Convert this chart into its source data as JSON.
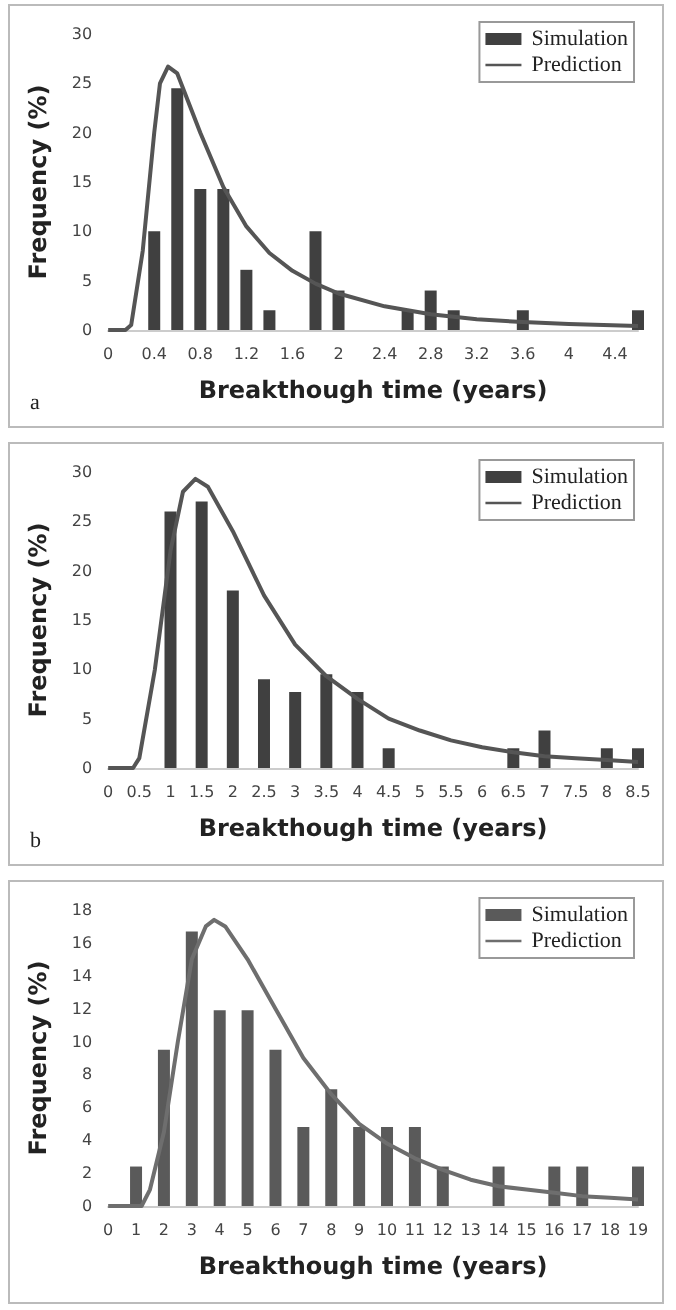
{
  "chart_data": [
    {
      "type": "bar",
      "xlabel": "Breakthough time (years)",
      "ylabel": "Frequency (%)",
      "annotations": [
        "a"
      ],
      "legend": "top right",
      "grid": false,
      "xlim": [
        0,
        4.6
      ],
      "xticks": [
        0,
        0.4,
        0.8,
        1.2,
        1.6,
        2,
        2.4,
        2.8,
        3.2,
        3.6,
        4,
        4.4
      ],
      "ylim": [
        0,
        30
      ],
      "yticks": [
        0,
        5,
        10,
        15,
        20,
        25,
        30
      ],
      "series": [
        {
          "name": "Simulation",
          "color": "#404040",
          "x": [
            0.4,
            0.6,
            0.8,
            1.0,
            1.2,
            1.4,
            1.8,
            2.0,
            2.6,
            2.8,
            3.0,
            3.6,
            4.6
          ],
          "values": [
            10,
            24.5,
            14.3,
            14.3,
            6.1,
            2,
            10,
            4,
            2,
            4,
            2,
            2,
            2
          ]
        },
        {
          "name": "Prediction",
          "type": "line",
          "color": "#555555",
          "x": [
            0,
            0.15,
            0.2,
            0.3,
            0.4,
            0.45,
            0.52,
            0.6,
            0.8,
            1.0,
            1.2,
            1.4,
            1.6,
            1.8,
            2.0,
            2.4,
            2.8,
            3.2,
            3.6,
            4.0,
            4.6
          ],
          "values": [
            0,
            0,
            0.5,
            8,
            20,
            25,
            26.7,
            26,
            20,
            14.5,
            10.5,
            7.8,
            6,
            4.7,
            3.7,
            2.4,
            1.6,
            1.1,
            0.8,
            0.6,
            0.4
          ]
        }
      ]
    },
    {
      "type": "bar",
      "xlabel": "Breakthough time (years)",
      "ylabel": "Frequency (%)",
      "annotations": [
        "b"
      ],
      "legend": "top right",
      "grid": false,
      "xlim": [
        0,
        8.5
      ],
      "xticks": [
        0,
        0.5,
        1,
        1.5,
        2,
        2.5,
        3,
        3.5,
        4,
        4.5,
        5,
        5.5,
        6,
        6.5,
        7,
        7.5,
        8,
        8.5
      ],
      "ylim": [
        0,
        30
      ],
      "yticks": [
        0,
        5,
        10,
        15,
        20,
        25,
        30
      ],
      "series": [
        {
          "name": "Simulation",
          "color": "#404040",
          "x": [
            1,
            1.5,
            2,
            2.5,
            3,
            3.5,
            4,
            4.5,
            6.5,
            7,
            8,
            8.5
          ],
          "values": [
            26,
            27,
            18,
            9,
            7.7,
            9.5,
            7.7,
            2,
            2,
            3.8,
            2,
            2
          ]
        },
        {
          "name": "Prediction",
          "type": "line",
          "color": "#555555",
          "x": [
            0,
            0.4,
            0.5,
            0.75,
            1,
            1.2,
            1.4,
            1.6,
            2,
            2.5,
            3,
            3.5,
            4,
            4.5,
            5,
            5.5,
            6,
            6.5,
            7,
            7.5,
            8,
            8.5
          ],
          "values": [
            0,
            0,
            1,
            10,
            22,
            28,
            29.3,
            28.5,
            24,
            17.5,
            12.5,
            9.3,
            7,
            5,
            3.8,
            2.8,
            2.1,
            1.6,
            1.2,
            1,
            0.8,
            0.6
          ]
        }
      ]
    },
    {
      "type": "bar",
      "xlabel": "Breakthough time (years)",
      "ylabel": "Frequency (%)",
      "legend": "top right",
      "grid": false,
      "xlim": [
        0,
        19
      ],
      "xticks": [
        0,
        1,
        2,
        3,
        4,
        5,
        6,
        7,
        8,
        9,
        10,
        11,
        12,
        13,
        14,
        15,
        16,
        17,
        18,
        19
      ],
      "ylim": [
        0,
        18
      ],
      "yticks": [
        0,
        2,
        4,
        6,
        8,
        10,
        12,
        14,
        16,
        18
      ],
      "series": [
        {
          "name": "Simulation",
          "color": "#5a5a5a",
          "x": [
            1,
            2,
            3,
            4,
            5,
            6,
            7,
            8,
            9,
            10,
            11,
            12,
            14,
            16,
            17,
            19
          ],
          "values": [
            2.4,
            9.5,
            16.7,
            11.9,
            11.9,
            9.5,
            4.8,
            7.1,
            4.8,
            4.8,
            4.8,
            2.4,
            2.4,
            2.4,
            2.4,
            2.4
          ]
        },
        {
          "name": "Prediction",
          "type": "line",
          "color": "#6e6e6e",
          "x": [
            0,
            1.2,
            1.5,
            2,
            2.5,
            3,
            3.5,
            3.8,
            4.2,
            5,
            6,
            7,
            8,
            9,
            10,
            11,
            12,
            13,
            14,
            15,
            16,
            17,
            18,
            19
          ],
          "values": [
            0,
            0,
            1,
            4.5,
            10,
            15,
            17,
            17.4,
            17,
            15,
            12,
            9,
            6.8,
            5,
            3.8,
            2.9,
            2.2,
            1.6,
            1.2,
            1,
            0.8,
            0.6,
            0.5,
            0.4
          ]
        }
      ]
    }
  ]
}
